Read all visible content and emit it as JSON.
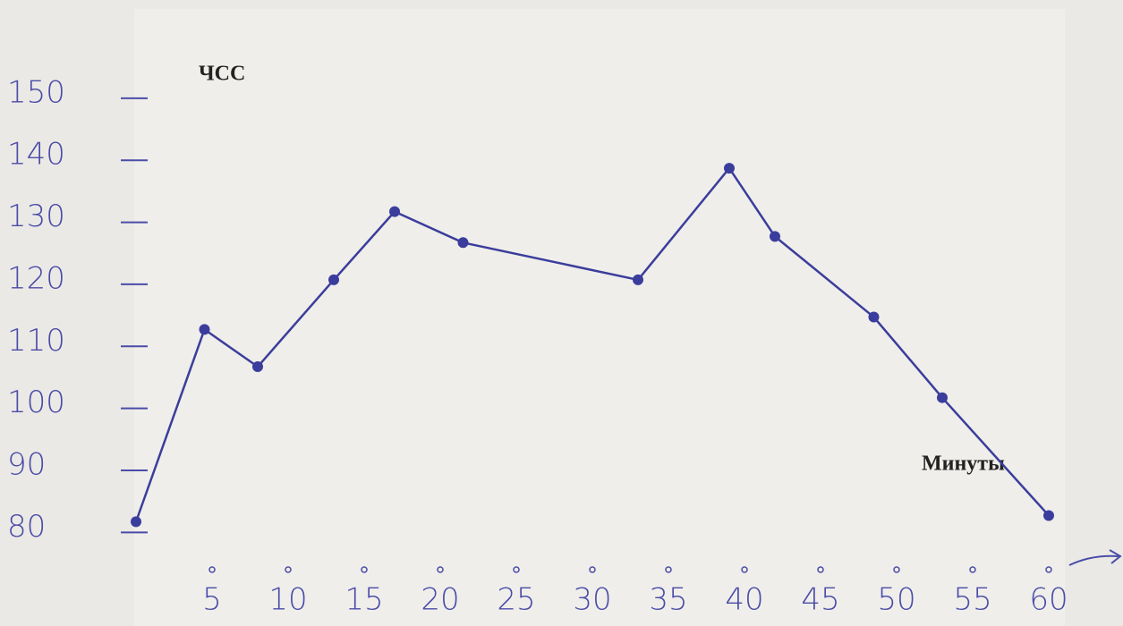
{
  "chart_data": {
    "type": "line",
    "y_label": "ЧСС",
    "x_label": "Минуты",
    "x": [
      0,
      4.5,
      8,
      13,
      17,
      21.5,
      33,
      39,
      42,
      48.5,
      53,
      60
    ],
    "series": [
      {
        "name": "ЧСС",
        "color": "#3b3d9c",
        "values": [
          81,
          112,
          106,
          120,
          131,
          126,
          120,
          138,
          127,
          114,
          101,
          82
        ]
      }
    ],
    "xlim": [
      0,
      62
    ],
    "ylim": [
      75,
      152
    ],
    "xticks": [
      5,
      10,
      15,
      20,
      25,
      30,
      35,
      40,
      45,
      50,
      55,
      60
    ],
    "yticks": [
      80,
      90,
      100,
      110,
      120,
      130,
      140,
      150
    ],
    "grid": false
  }
}
